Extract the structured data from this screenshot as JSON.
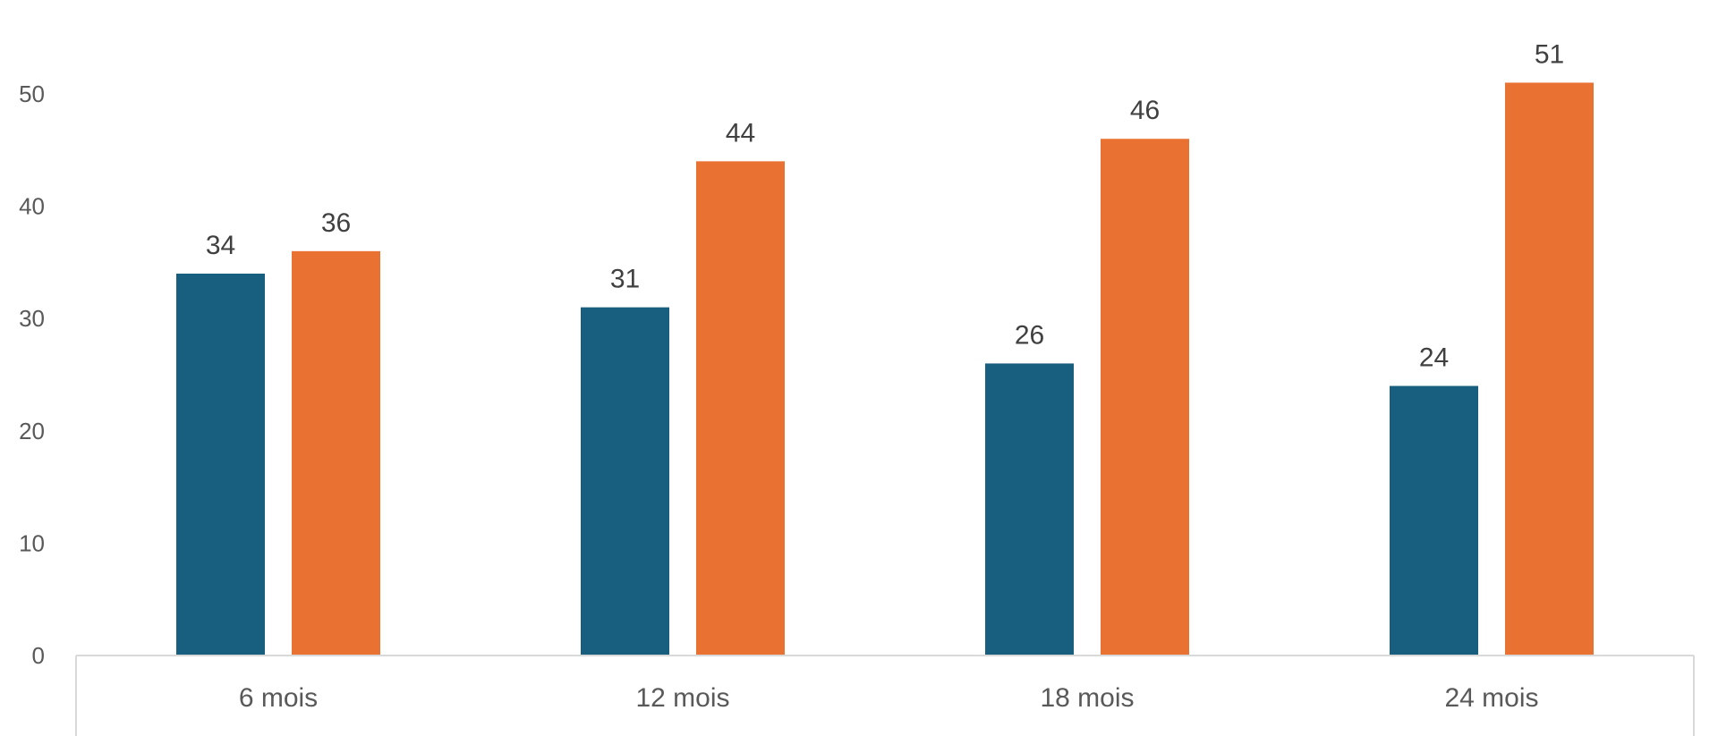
{
  "colors": {
    "series_1": "#185e7f",
    "series_2": "#e97132",
    "axis_line": "#d9d9d9",
    "text": "#595959"
  },
  "chart_data": {
    "type": "bar",
    "title": "",
    "xlabel": "",
    "ylabel": "",
    "categories": [
      "6 mois",
      "12 mois",
      "18 mois",
      "24 mois"
    ],
    "series": [
      {
        "values": [
          34,
          31,
          26,
          24
        ],
        "color": "#185e7f"
      },
      {
        "values": [
          36,
          44,
          46,
          51
        ],
        "color": "#e97132"
      }
    ],
    "ylim": [
      0,
      50
    ],
    "yticks": [
      0,
      10,
      20,
      30,
      40,
      50
    ],
    "grid": false,
    "legend": "none",
    "data_labels": true
  }
}
